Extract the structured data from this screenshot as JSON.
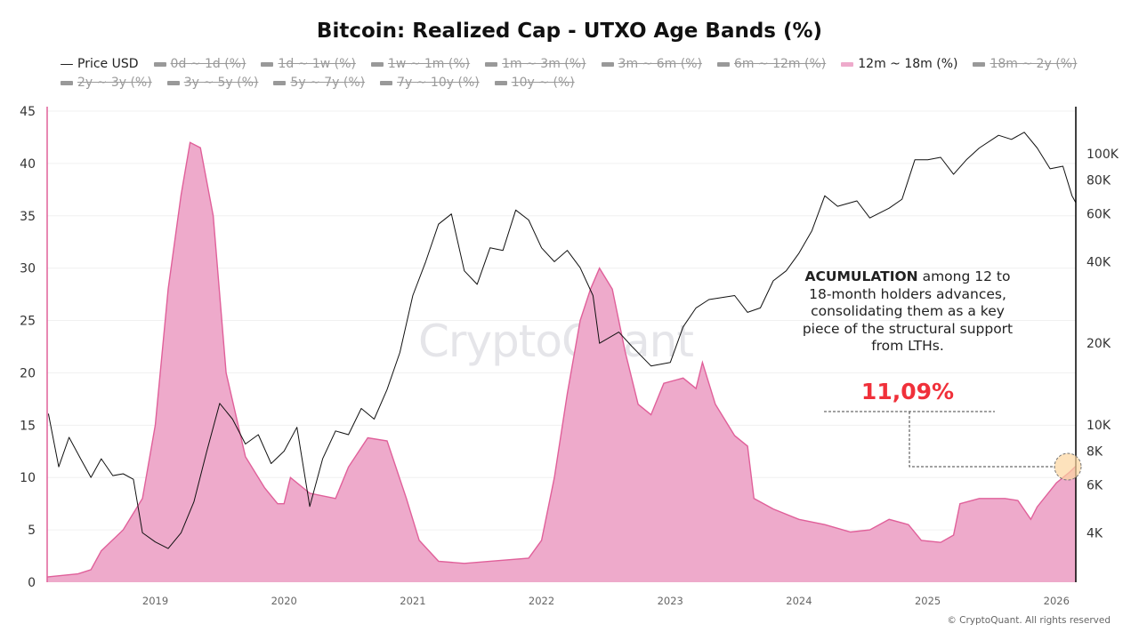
{
  "chart_data": {
    "type": "area",
    "title": "Bitcoin: Realized Cap - UTXO Age Bands (%)",
    "legend": [
      {
        "name": "Price USD",
        "active": true,
        "kind": "line"
      },
      {
        "name": "0d ~ 1d (%)",
        "active": false
      },
      {
        "name": "1d ~ 1w (%)",
        "active": false
      },
      {
        "name": "1w ~ 1m (%)",
        "active": false
      },
      {
        "name": "1m ~ 3m (%)",
        "active": false
      },
      {
        "name": "3m ~ 6m (%)",
        "active": false
      },
      {
        "name": "6m ~ 12m (%)",
        "active": false
      },
      {
        "name": "12m ~ 18m (%)",
        "active": true,
        "kind": "area"
      },
      {
        "name": "18m ~ 2y (%)",
        "active": false
      },
      {
        "name": "2y ~ 3y (%)",
        "active": false
      },
      {
        "name": "3y ~ 5y (%)",
        "active": false
      },
      {
        "name": "5y ~ 7y (%)",
        "active": false
      },
      {
        "name": "7y ~ 10y (%)",
        "active": false
      },
      {
        "name": "10y ~ (%)",
        "active": false
      }
    ],
    "legend_placement": "top",
    "x_ticks": [
      "2019",
      "2020",
      "2021",
      "2022",
      "2023",
      "2024",
      "2025",
      "2026"
    ],
    "x_range": [
      2018.16,
      2026.15
    ],
    "y_left": {
      "range": [
        0,
        45
      ],
      "ticks": [
        0,
        5,
        10,
        15,
        20,
        25,
        30,
        35,
        40,
        45
      ]
    },
    "y_right": {
      "scale": "log",
      "range": [
        2800,
        160000
      ],
      "ticks": [
        {
          "v": 4000,
          "l": "4K"
        },
        {
          "v": 6000,
          "l": "6K"
        },
        {
          "v": 8000,
          "l": "8K"
        },
        {
          "v": 10000,
          "l": "10K"
        },
        {
          "v": 20000,
          "l": "20K"
        },
        {
          "v": 40000,
          "l": "40K"
        },
        {
          "v": 60000,
          "l": "60K"
        },
        {
          "v": 80000,
          "l": "80K"
        },
        {
          "v": 100000,
          "l": "100K"
        }
      ]
    },
    "grid": true,
    "colors": {
      "band": "#e0609a",
      "band_fill": "#eeaacb",
      "price": "#111111",
      "highlight": "#f0303a"
    },
    "series": [
      {
        "name": "12m ~ 18m (%)",
        "axis": "left",
        "x": [
          2018.16,
          2018.4,
          2018.5,
          2018.58,
          2018.75,
          2018.9,
          2019.0,
          2019.1,
          2019.2,
          2019.27,
          2019.35,
          2019.45,
          2019.55,
          2019.7,
          2019.85,
          2019.95,
          2020.0,
          2020.05,
          2020.2,
          2020.4,
          2020.5,
          2020.65,
          2020.8,
          2020.95,
          2021.05,
          2021.2,
          2021.4,
          2021.6,
          2021.9,
          2022.0,
          2022.1,
          2022.2,
          2022.3,
          2022.38,
          2022.45,
          2022.55,
          2022.65,
          2022.75,
          2022.85,
          2022.95,
          2023.1,
          2023.2,
          2023.25,
          2023.35,
          2023.5,
          2023.6,
          2023.65,
          2023.8,
          2024.0,
          2024.2,
          2024.4,
          2024.55,
          2024.7,
          2024.85,
          2024.95,
          2025.1,
          2025.2,
          2025.25,
          2025.4,
          2025.6,
          2025.7,
          2025.8,
          2025.85,
          2026.0,
          2026.1,
          2026.15
        ],
        "y": [
          0.5,
          0.8,
          1.2,
          3,
          5,
          8,
          15,
          28,
          37,
          42,
          41.5,
          35,
          20,
          12,
          9,
          7.5,
          7.5,
          10,
          8.5,
          8,
          11,
          13.8,
          13.5,
          8,
          4,
          2,
          1.8,
          2,
          2.3,
          4,
          10,
          18,
          25,
          28,
          30,
          28,
          22,
          17,
          16,
          19,
          19.5,
          18.5,
          21,
          17,
          14,
          13,
          8,
          7,
          6,
          5.5,
          4.8,
          5,
          6,
          5.5,
          4,
          3.8,
          4.5,
          7.5,
          8,
          8,
          7.8,
          6,
          7.2,
          9.5,
          10.5,
          11.09
        ]
      },
      {
        "name": "Price USD",
        "axis": "right",
        "x": [
          2018.17,
          2018.25,
          2018.33,
          2018.42,
          2018.5,
          2018.58,
          2018.67,
          2018.75,
          2018.83,
          2018.9,
          2019.0,
          2019.1,
          2019.2,
          2019.3,
          2019.4,
          2019.5,
          2019.6,
          2019.7,
          2019.8,
          2019.9,
          2020.0,
          2020.1,
          2020.2,
          2020.3,
          2020.4,
          2020.5,
          2020.6,
          2020.7,
          2020.8,
          2020.9,
          2021.0,
          2021.1,
          2021.2,
          2021.3,
          2021.4,
          2021.5,
          2021.6,
          2021.7,
          2021.8,
          2021.9,
          2022.0,
          2022.1,
          2022.2,
          2022.3,
          2022.4,
          2022.45,
          2022.6,
          2022.7,
          2022.85,
          2023.0,
          2023.1,
          2023.2,
          2023.3,
          2023.5,
          2023.6,
          2023.7,
          2023.8,
          2023.9,
          2024.0,
          2024.1,
          2024.2,
          2024.3,
          2024.45,
          2024.55,
          2024.7,
          2024.8,
          2024.9,
          2025.0,
          2025.1,
          2025.2,
          2025.3,
          2025.4,
          2025.55,
          2025.65,
          2025.75,
          2025.85,
          2025.95,
          2026.05,
          2026.12,
          2026.15
        ],
        "y": [
          11000,
          7000,
          9000,
          7500,
          6400,
          7500,
          6500,
          6600,
          6300,
          4000,
          3700,
          3500,
          4000,
          5200,
          8000,
          12000,
          10500,
          8500,
          9200,
          7200,
          8000,
          9800,
          5000,
          7500,
          9500,
          9200,
          11500,
          10500,
          13500,
          18500,
          30000,
          40000,
          55000,
          60000,
          37000,
          33000,
          45000,
          44000,
          62000,
          57000,
          45000,
          40000,
          44000,
          38000,
          30000,
          20000,
          22000,
          19500,
          16500,
          17000,
          23000,
          27000,
          29000,
          30000,
          26000,
          27000,
          34000,
          37000,
          43000,
          52000,
          70000,
          64000,
          67000,
          58000,
          63000,
          68000,
          95000,
          95000,
          97000,
          84000,
          95000,
          105000,
          117000,
          113000,
          120000,
          105000,
          88000,
          90000,
          70000,
          66000
        ]
      }
    ],
    "annotation": {
      "bold": "ACUMULATION",
      "text": " among 12 to 18-month holders advances, consolidating them as a key piece of the structural support from LTHs.",
      "value_label": "11,09%"
    }
  },
  "watermark": "CryptoQuant",
  "footer": "© CryptoQuant. All rights reserved"
}
